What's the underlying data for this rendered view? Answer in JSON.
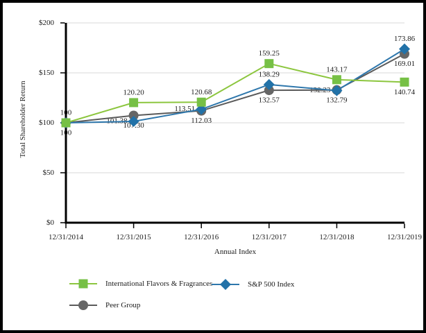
{
  "figure": {
    "background": "#ffffff",
    "border_color": "#000000",
    "gridline_color": "#D9D9D9",
    "axis_color": "#000000",
    "text_color": "#1a1a1a"
  },
  "chart_data": {
    "type": "line",
    "title": "",
    "xlabel": "Annual Index",
    "ylabel": "Total Shareholder Return",
    "categories": [
      "12/31/2014",
      "12/31/2015",
      "12/31/2016",
      "12/31/2017",
      "12/31/2018",
      "12/31/2019"
    ],
    "y_ticks": [
      {
        "label": "$0",
        "value": 0
      },
      {
        "label": "$50",
        "value": 50
      },
      {
        "label": "$100",
        "value": 100
      },
      {
        "label": "$150",
        "value": 150
      },
      {
        "label": "$200",
        "value": 200
      }
    ],
    "ylim": [
      0,
      200
    ],
    "grid": true,
    "legend_position": "bottom",
    "series": [
      {
        "name": "International Flavors & Fragrances",
        "marker": "square",
        "marker_color": "#76C045",
        "line_color": "#8CC63E",
        "values": [
          100,
          120.2,
          120.68,
          159.25,
          143.17,
          140.74
        ],
        "labels": [
          "100",
          "120.20",
          "120.68",
          "159.25",
          "143.17",
          "140.74"
        ],
        "label_pos": [
          "above",
          "above",
          "above",
          "above",
          "above",
          "below"
        ]
      },
      {
        "name": "S&P 500 Index",
        "marker": "diamond",
        "marker_color": "#2272A8",
        "line_color": "#2E77AC",
        "values": [
          100,
          101.38,
          113.51,
          138.29,
          132.23,
          173.86
        ],
        "labels": [
          "100",
          "101.38",
          "113.51",
          "138.29",
          "132.23",
          "173.86"
        ],
        "label_pos": [
          "none",
          "left",
          "left",
          "above",
          "left",
          "above"
        ]
      },
      {
        "name": "Peer Group",
        "marker": "circle",
        "marker_color": "#666666",
        "line_color": "#5A5A5A",
        "values": [
          100,
          107.3,
          112.03,
          132.57,
          132.79,
          169.01
        ],
        "labels": [
          "100",
          "107.30",
          "112.03",
          "132.57",
          "132.79",
          "169.01"
        ],
        "label_pos": [
          "below",
          "below",
          "below",
          "below",
          "below",
          "below"
        ]
      }
    ]
  }
}
